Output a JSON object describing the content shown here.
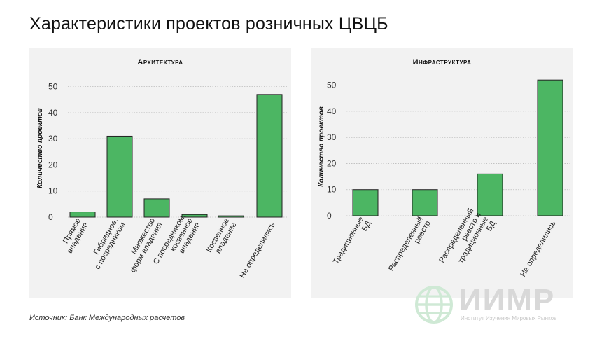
{
  "title": "Характеристики проектов розничных ЦВЦБ",
  "source": "Источник: Банк Международных расчетов",
  "logo": {
    "text": "ИИМР",
    "subtitle": "Институт Изучения Мировых Рынков"
  },
  "colors": {
    "bar": "#4cb663",
    "bar_edge": "#222222",
    "panel_bg": "#f2f2f2",
    "grid": "#bbbbbb"
  },
  "chart_data": [
    {
      "type": "bar",
      "title": "Архитектура",
      "ylabel": "Количество проектов",
      "xlabel": "",
      "ylim": [
        0,
        55
      ],
      "yticks": [
        0,
        10,
        20,
        30,
        40,
        50
      ],
      "grid": true,
      "categories": [
        [
          "Прямое",
          "владение"
        ],
        [
          "Гибридное,",
          "с посредником"
        ],
        [
          "Множество",
          "форм владения"
        ],
        [
          "С посредником,",
          "косвенное",
          "владение"
        ],
        [
          "Косвенное",
          "владение"
        ],
        [
          "Не определились"
        ]
      ],
      "values": [
        2,
        31,
        7,
        1,
        0.5,
        47
      ]
    },
    {
      "type": "bar",
      "title": "Инфраструктура",
      "ylabel": "Количество проектов",
      "xlabel": "",
      "ylim": [
        0,
        55
      ],
      "yticks": [
        0,
        10,
        20,
        30,
        40,
        50
      ],
      "grid": true,
      "categories": [
        [
          "Традиционные",
          "БД"
        ],
        [
          "Распределенный",
          "реестр"
        ],
        [
          "Распределенный",
          "реестр и",
          "традиционные",
          "БД"
        ],
        [
          "Не определились"
        ]
      ],
      "values": [
        10,
        10,
        16,
        52
      ]
    }
  ]
}
